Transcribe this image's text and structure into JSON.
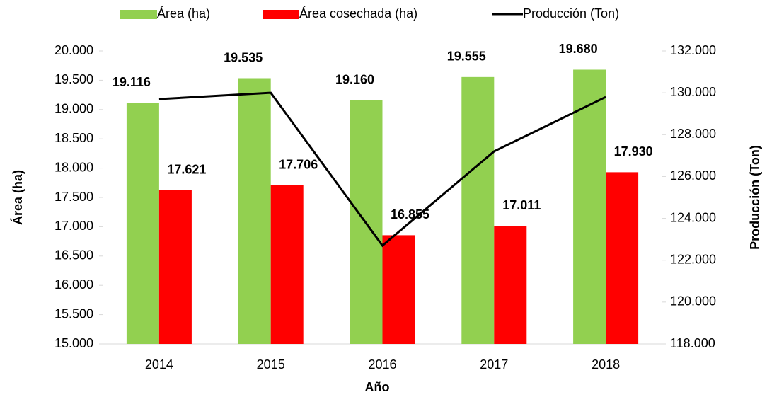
{
  "chart_data": {
    "type": "bar_line",
    "x_label": "Año",
    "y_label": "Área (ha)",
    "y2_label": "Producción (Ton)",
    "categories": [
      "2014",
      "2015",
      "2016",
      "2017",
      "2018"
    ],
    "series": [
      {
        "name": "Área (ha)",
        "color": "#92d050",
        "type": "bar",
        "values": [
          19116,
          19535,
          19160,
          19555,
          19680
        ],
        "value_labels": [
          "19.116",
          "19.535",
          "19.160",
          "19.555",
          "19.680"
        ]
      },
      {
        "name": "Área cosechada (ha)",
        "color": "#ff0000",
        "type": "bar",
        "values": [
          17621,
          17706,
          16855,
          17011,
          17930
        ],
        "value_labels": [
          "17.621",
          "17.706",
          "16.855",
          "17.011",
          "17.930"
        ]
      },
      {
        "name": "Producción (Ton)",
        "color": "#000000",
        "type": "line",
        "axis": "y2",
        "values": [
          129700,
          130000,
          122700,
          127200,
          129800
        ]
      }
    ],
    "ylim": [
      15000,
      20000
    ],
    "yticks": [
      {
        "value": 15000,
        "label": "15.000"
      },
      {
        "value": 15500,
        "label": "15.500"
      },
      {
        "value": 16000,
        "label": "16.000"
      },
      {
        "value": 16500,
        "label": "16.500"
      },
      {
        "value": 17000,
        "label": "17.000"
      },
      {
        "value": 17500,
        "label": "17.500"
      },
      {
        "value": 18000,
        "label": "18.000"
      },
      {
        "value": 18500,
        "label": "18.500"
      },
      {
        "value": 19000,
        "label": "19.000"
      },
      {
        "value": 19500,
        "label": "19.500"
      },
      {
        "value": 20000,
        "label": "20.000"
      }
    ],
    "y2lim": [
      118000,
      132000
    ],
    "y2ticks": [
      {
        "value": 118000,
        "label": "118.000"
      },
      {
        "value": 120000,
        "label": "120.000"
      },
      {
        "value": 122000,
        "label": "122.000"
      },
      {
        "value": 124000,
        "label": "124.000"
      },
      {
        "value": 126000,
        "label": "126.000"
      },
      {
        "value": 128000,
        "label": "128.000"
      },
      {
        "value": 130000,
        "label": "130.000"
      },
      {
        "value": 132000,
        "label": "132.000"
      }
    ],
    "legend": "top"
  }
}
